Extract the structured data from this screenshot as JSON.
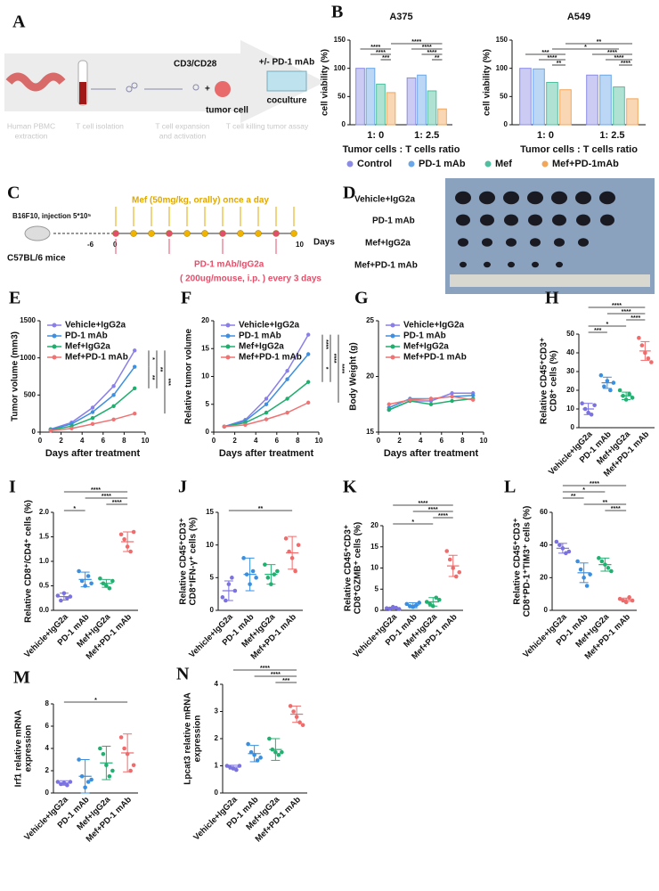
{
  "diagram_a": {
    "panel": "A",
    "steps": [
      [
        "Human PBMC",
        "extraction"
      ],
      [
        "T cell isolation"
      ],
      [
        "T cell expansion",
        "and activation"
      ],
      [
        "T cell killing tumor assay"
      ]
    ],
    "stimulus": "CD3/CD28",
    "tumor": "tumor cell",
    "treatment": "+/- PD-1 mAb",
    "readout": "coculture"
  },
  "diagram_c": {
    "panel": "C",
    "drug": "Mef (50mg/kg, orally) once a day",
    "injection": "B16F10, injection 5*10⁵",
    "mice": "C57BL/6 mice",
    "timeline": [
      "-6",
      "0",
      "10"
    ],
    "unit": "Days",
    "antibody": "PD-1 mAb/IgG2a",
    "antibody_dose": "( 200ug/mouse, i.p. ) every 3 days"
  },
  "diagram_d": {
    "panel": "D",
    "groups": [
      "Vehicle+IgG2a",
      "PD-1 mAb",
      "Mef+IgG2a",
      "Mef+PD-1 mAb"
    ]
  },
  "chart_data": [
    {
      "type": "bar",
      "panel": "B",
      "title": "A375",
      "x_label": "Tumor cells : T cells ratio",
      "y_label": "cell viability (%)",
      "categories": [
        "1: 0",
        "1: 2.5"
      ],
      "series": [
        {
          "name": "Control",
          "color": "#8b8be6",
          "values": [
            100,
            83
          ]
        },
        {
          "name": "PD-1 mAb",
          "color": "#6aa6e8",
          "values": [
            100,
            88
          ]
        },
        {
          "name": "Mef",
          "color": "#4fbf9f",
          "values": [
            72,
            60
          ]
        },
        {
          "name": "Mef+PD-1mAb",
          "color": "#f2a65a",
          "values": [
            57,
            28
          ]
        }
      ],
      "ylim": [
        0,
        150
      ],
      "yticks": [
        0,
        50,
        100,
        150
      ],
      "significance": [
        "****",
        "****",
        "***",
        "****",
        "****",
        "****",
        "**"
      ]
    },
    {
      "type": "bar",
      "title": "A549",
      "x_label": "Tumor cells : T cells ratio",
      "y_label": "cell viability (%)",
      "categories": [
        "1: 0",
        "1: 2.5"
      ],
      "series": [
        {
          "name": "Control",
          "color": "#8b8be6",
          "values": [
            100,
            88
          ]
        },
        {
          "name": "PD-1 mAb",
          "color": "#6aa6e8",
          "values": [
            99,
            88
          ]
        },
        {
          "name": "Mef",
          "color": "#4fbf9f",
          "values": [
            75,
            67
          ]
        },
        {
          "name": "Mef+PD-1mAb",
          "color": "#f2a65a",
          "values": [
            62,
            46
          ]
        }
      ],
      "ylim": [
        0,
        150
      ],
      "yticks": [
        0,
        50,
        100,
        150
      ],
      "significance": [
        "**",
        "*",
        "***",
        "****",
        "**",
        "****",
        "****",
        "****"
      ]
    },
    {
      "type": "line",
      "panel": "E",
      "x_label": "Days after treatment",
      "y_label": "Tumor volume (mm3)",
      "x": [
        1,
        3,
        5,
        7,
        9
      ],
      "series": [
        {
          "name": "Vehicle+IgG2a",
          "color": "#8a7fe8",
          "values": [
            40,
            130,
            330,
            620,
            1100
          ]
        },
        {
          "name": "PD-1 mAb",
          "color": "#3f8fe0",
          "values": [
            35,
            110,
            270,
            500,
            880
          ]
        },
        {
          "name": "Mef+IgG2a",
          "color": "#1fae6d",
          "values": [
            30,
            80,
            190,
            350,
            590
          ]
        },
        {
          "name": "Mef+PD-1 mAb",
          "color": "#f07272",
          "values": [
            20,
            50,
            110,
            170,
            250
          ]
        }
      ],
      "xlim": [
        0,
        10
      ],
      "xticks": [
        0,
        2,
        4,
        6,
        8,
        10
      ],
      "ylim": [
        0,
        1500
      ],
      "yticks": [
        0,
        500,
        1000,
        1500
      ],
      "significance": [
        "*",
        "**",
        "**",
        "***"
      ]
    },
    {
      "type": "line",
      "panel": "F",
      "x_label": "Days after treatment",
      "y_label": "Relative tumor volume",
      "x": [
        1,
        3,
        5,
        7,
        9
      ],
      "series": [
        {
          "name": "Vehicle+IgG2a",
          "color": "#8a7fe8",
          "values": [
            1,
            2.2,
            6,
            11,
            17.5
          ]
        },
        {
          "name": "PD-1 mAb",
          "color": "#3f8fe0",
          "values": [
            1,
            2,
            5,
            9.5,
            14
          ]
        },
        {
          "name": "Mef+IgG2a",
          "color": "#1fae6d",
          "values": [
            1,
            1.7,
            3.5,
            6,
            9
          ]
        },
        {
          "name": "Mef+PD-1 mAb",
          "color": "#f07272",
          "values": [
            1,
            1.3,
            2.3,
            3.5,
            5.3
          ]
        }
      ],
      "xlim": [
        0,
        10
      ],
      "xticks": [
        0,
        2,
        4,
        6,
        8,
        10
      ],
      "ylim": [
        0,
        20
      ],
      "yticks": [
        0,
        5,
        10,
        15,
        20
      ],
      "significance": [
        "****",
        "*",
        "****",
        "****"
      ]
    },
    {
      "type": "line",
      "panel": "G",
      "x_label": "Days after treatment",
      "y_label": "Body Weight (g)",
      "x": [
        1,
        3,
        5,
        7,
        9
      ],
      "series": [
        {
          "name": "Vehicle+IgG2a",
          "color": "#8a7fe8",
          "values": [
            17,
            17.8,
            17.8,
            18.5,
            18.5
          ]
        },
        {
          "name": "PD-1 mAb",
          "color": "#3f8fe0",
          "values": [
            17.2,
            18,
            18,
            18.2,
            18.3
          ]
        },
        {
          "name": "Mef+IgG2a",
          "color": "#1fae6d",
          "values": [
            17,
            17.8,
            17.5,
            17.8,
            18
          ]
        },
        {
          "name": "Mef+PD-1 mAb",
          "color": "#f07272",
          "values": [
            17.5,
            17.9,
            18,
            18.2,
            17.9
          ]
        }
      ],
      "xlim": [
        0,
        10
      ],
      "xticks": [
        0,
        2,
        4,
        6,
        8,
        10
      ],
      "ylim": [
        15,
        25
      ],
      "yticks": [
        15,
        20,
        25
      ],
      "significance": []
    },
    {
      "type": "strip",
      "panel": "H",
      "y_label": [
        "Relative CD45⁺CD3⁺",
        "CD8⁺ cells (%)"
      ],
      "categories": [
        "Vehicle+IgG2a",
        "PD-1 mAb",
        "Mef+IgG2a",
        "Mef+PD-1 mAb"
      ],
      "colors": [
        "#7b72e0",
        "#3a8fe0",
        "#20b070",
        "#f06b6b"
      ],
      "points": [
        [
          13,
          10,
          8,
          7,
          12
        ],
        [
          28,
          22,
          25,
          20,
          24
        ],
        [
          20,
          17,
          15,
          18,
          16
        ],
        [
          48,
          44,
          40,
          37,
          35
        ]
      ],
      "means": [
        10,
        24,
        17,
        41
      ],
      "sd": [
        3,
        3,
        2,
        5
      ],
      "ylim": [
        0,
        50
      ],
      "yticks": [
        0,
        10,
        20,
        30,
        40,
        50
      ],
      "significance": [
        "***",
        "*",
        "****",
        "****",
        "****"
      ]
    },
    {
      "type": "strip",
      "panel": "I",
      "y_label": [
        "Relative CD8⁺/CD4⁺ cells (%)"
      ],
      "categories": [
        "Vehicle+IgG2a",
        "PD-1 mAb",
        "Mef+IgG2a",
        "Mef+PD-1 mAb"
      ],
      "colors": [
        "#7b72e0",
        "#3a8fe0",
        "#20b070",
        "#f06b6b"
      ],
      "points": [
        [
          0.3,
          0.2,
          0.35,
          0.25,
          0.28
        ],
        [
          0.8,
          0.6,
          0.5,
          0.7,
          0.55
        ],
        [
          0.65,
          0.55,
          0.5,
          0.45,
          0.6
        ],
        [
          1.55,
          1.45,
          1.3,
          1.2,
          1.6
        ]
      ],
      "means": [
        0.28,
        0.63,
        0.55,
        1.4
      ],
      "sd": [
        0.07,
        0.15,
        0.08,
        0.2
      ],
      "ylim": [
        0,
        2
      ],
      "yticks": [
        {
          "value": 0,
          "label": "0.0"
        },
        0.5,
        {
          "value": 1,
          "label": "1.0"
        },
        1.5,
        {
          "value": 2,
          "label": "2.0"
        }
      ],
      "significance": [
        "*",
        "****",
        "****",
        "****"
      ]
    },
    {
      "type": "strip",
      "panel": "J",
      "y_label": [
        "Relative CD45⁺CD3⁺",
        "CD8⁺IFN-γ⁺ cells (%)"
      ],
      "categories": [
        "Vehicle+IgG2a",
        "PD-1 mAb",
        "Mef+IgG2a",
        "Mef+PD-1 mAb"
      ],
      "colors": [
        "#7b72e0",
        "#3a8fe0",
        "#20b070",
        "#f06b6b"
      ],
      "points": [
        [
          2,
          1.5,
          4,
          5,
          3
        ],
        [
          8,
          5.5,
          4,
          6,
          5
        ],
        [
          7,
          5,
          4,
          5.5,
          6
        ],
        [
          11,
          9,
          8,
          6,
          10
        ]
      ],
      "means": [
        3,
        5.5,
        5.5,
        8.8
      ],
      "sd": [
        1.5,
        2.5,
        1.5,
        2.5
      ],
      "ylim": [
        0,
        15
      ],
      "yticks": [
        0,
        5,
        10,
        15
      ],
      "significance": [
        "**"
      ]
    },
    {
      "type": "strip",
      "panel": "K",
      "y_label": [
        "Relative CD45⁺CD3⁺",
        "CD8⁺GZMB⁺ cells (%)"
      ],
      "categories": [
        "Vehicle+IgG2a",
        "PD-1 mAb",
        "Mef+IgG2a",
        "Mef+PD-1 mAb"
      ],
      "colors": [
        "#7b72e0",
        "#3a8fe0",
        "#20b070",
        "#f06b6b"
      ],
      "points": [
        [
          0.5,
          0.4,
          0.8,
          0.6,
          0.3
        ],
        [
          1.5,
          1,
          0.8,
          1.2,
          1.8
        ],
        [
          2,
          1.5,
          1,
          3,
          2.5
        ],
        [
          14,
          12,
          10,
          8,
          9
        ]
      ],
      "means": [
        0.5,
        1.2,
        2,
        10.5
      ],
      "sd": [
        0.2,
        0.6,
        1,
        2.5
      ],
      "ylim": [
        0,
        20
      ],
      "yticks": [
        0,
        5,
        10,
        15,
        20
      ],
      "significance": [
        "*",
        "****",
        "****",
        "****"
      ]
    },
    {
      "type": "strip",
      "panel": "L",
      "y_label": [
        "Relative CD45⁺CD3⁺",
        "CD8⁺PD-1⁺TIM3⁺ cells (%)"
      ],
      "categories": [
        "Vehicle+IgG2a",
        "PD-1 mAb",
        "Mef+IgG2a",
        "Mef+PD-1 mAb"
      ],
      "colors": [
        "#7b72e0",
        "#3a8fe0",
        "#20b070",
        "#f06b6b"
      ],
      "points": [
        [
          42,
          40,
          38,
          35,
          36
        ],
        [
          30,
          25,
          20,
          15,
          22
        ],
        [
          32,
          30,
          28,
          26,
          24
        ],
        [
          7,
          6,
          5,
          8,
          6
        ]
      ],
      "means": [
        38,
        23,
        28,
        6.5
      ],
      "sd": [
        3,
        6,
        4,
        1
      ],
      "ylim": [
        0,
        60
      ],
      "yticks": [
        0,
        20,
        40,
        60
      ],
      "significance": [
        "****",
        "*",
        "**",
        "**",
        "****"
      ]
    },
    {
      "type": "strip",
      "panel": "M",
      "y_label": [
        "Irf1 relative mRNA",
        "expression"
      ],
      "categories": [
        "Vehicle+IgG2a",
        "PD-1 mAb",
        "Mef+IgG2a",
        "Mef+PD-1 mAb"
      ],
      "colors": [
        "#7b72e0",
        "#3a8fe0",
        "#20b070",
        "#f06b6b"
      ],
      "points": [
        [
          1,
          0.8,
          0.9,
          0.7,
          1
        ],
        [
          3,
          1.5,
          0.5,
          1,
          1.2
        ],
        [
          4,
          3.5,
          2.5,
          1.5,
          2
        ],
        [
          5,
          4,
          3.5,
          2,
          2.5
        ]
      ],
      "means": [
        0.9,
        1.5,
        2.7,
        3.6
      ],
      "sd": [
        0.2,
        1.5,
        1.5,
        1.7
      ],
      "ylim": [
        0,
        8
      ],
      "yticks": [
        0,
        2,
        4,
        6,
        8
      ],
      "significance": [
        "*"
      ]
    },
    {
      "type": "strip",
      "panel": "N",
      "y_label": [
        "Lpcat3 relative mRNA",
        "expression"
      ],
      "categories": [
        "Vehicle+IgG2a",
        "PD-1 mAb",
        "Mef+IgG2a",
        "Mef+PD-1 mAb"
      ],
      "colors": [
        "#7b72e0",
        "#3a8fe0",
        "#20b070",
        "#f06b6b"
      ],
      "points": [
        [
          1,
          0.95,
          0.9,
          0.85,
          1
        ],
        [
          1.8,
          1.5,
          1.4,
          1.2,
          1.3
        ],
        [
          2,
          1.6,
          1.5,
          1.4,
          1.5
        ],
        [
          3.2,
          3,
          2.8,
          2.6,
          2.5
        ]
      ],
      "means": [
        0.95,
        1.45,
        1.6,
        2.9
      ],
      "sd": [
        0.07,
        0.3,
        0.4,
        0.3
      ],
      "ylim": [
        0,
        4
      ],
      "yticks": [
        0,
        1,
        2,
        3,
        4
      ],
      "significance": [
        "****",
        "****",
        "***"
      ]
    }
  ]
}
